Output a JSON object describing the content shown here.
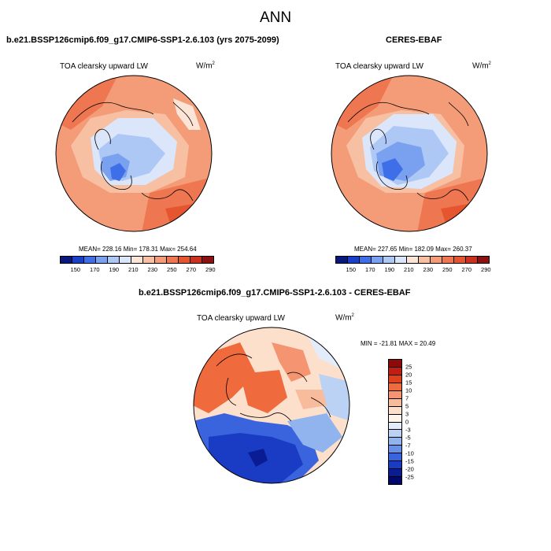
{
  "figure": {
    "title": "ANN"
  },
  "panels": [
    {
      "title": "b.e21.BSSP126cmip6.f09_g17.CMIP6-SSP1-2.6.103 (yrs 2075-2099)",
      "variable": "TOA clearsky upward LW",
      "units_base": "W/m",
      "units_exp": "2",
      "stats": "MEAN= 228.16  Min= 178.31  Max= 254.64",
      "colorbar": {
        "colors": [
          "#08187c",
          "#1a3fc8",
          "#3f6fe8",
          "#7aa0f0",
          "#aec8f6",
          "#dbe6fb",
          "#fce4d6",
          "#f8c0a2",
          "#f49c78",
          "#ee7650",
          "#e55530",
          "#c8321e",
          "#8c1212"
        ],
        "ticks": [
          "150",
          "170",
          "190",
          "210",
          "230",
          "250",
          "270",
          "290"
        ]
      }
    },
    {
      "title": "CERES-EBAF",
      "variable": "TOA clearsky upward LW",
      "units_base": "W/m",
      "units_exp": "2",
      "stats": "MEAN= 227.65  Min= 182.09  Max= 260.37",
      "colorbar": {
        "colors": [
          "#08187c",
          "#1a3fc8",
          "#3f6fe8",
          "#7aa0f0",
          "#aec8f6",
          "#dbe6fb",
          "#fce4d6",
          "#f8c0a2",
          "#f49c78",
          "#ee7650",
          "#e55530",
          "#c8321e",
          "#8c1212"
        ],
        "ticks": [
          "150",
          "170",
          "190",
          "210",
          "230",
          "250",
          "270",
          "290"
        ]
      }
    },
    {
      "title": "b.e21.BSSP126cmip6.f09_g17.CMIP6-SSP1-2.6.103 - CERES-EBAF",
      "variable": "TOA clearsky upward LW",
      "units_base": "W/m",
      "units_exp": "2",
      "stats": "MIN = -21.81 MAX =  20.49",
      "colorbar": {
        "colors": [
          "#8c0a0a",
          "#c01e14",
          "#e0401e",
          "#ef6a3c",
          "#f49470",
          "#f8bc9c",
          "#fce0cc",
          "#fff4ec",
          "#e2ecfa",
          "#bcd2f4",
          "#92b4ee",
          "#6890e6",
          "#3a64de",
          "#1a3cc4",
          "#0a1c94",
          "#02086a"
        ],
        "ticks": [
          "25",
          "20",
          "15",
          "10",
          "7",
          "5",
          "3",
          "0",
          "-3",
          "-5",
          "-7",
          "-10",
          "-15",
          "-20",
          "-25"
        ]
      }
    }
  ]
}
